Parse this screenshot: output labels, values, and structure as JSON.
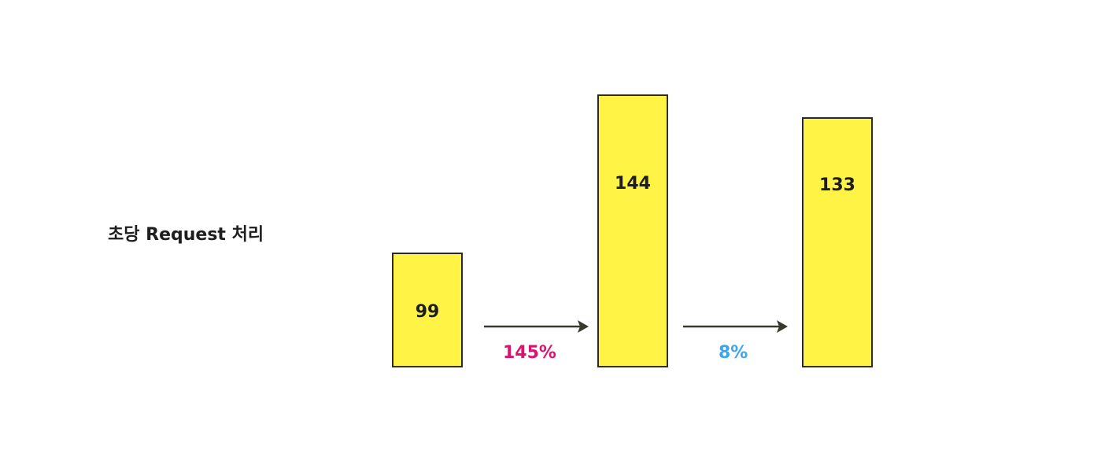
{
  "title": "초당 Request 처리",
  "bars": [
    {
      "label": "99",
      "value": 99
    },
    {
      "label": "144",
      "value": 144
    },
    {
      "label": "133",
      "value": 133
    }
  ],
  "changes": [
    {
      "label": "145%",
      "color": "#e0106e"
    },
    {
      "label": "8%",
      "color": "#3ba5f0"
    }
  ],
  "colors": {
    "bar_fill": "#fff345",
    "bar_stroke": "#2a2a2a",
    "arrow": "#343a2c"
  }
}
